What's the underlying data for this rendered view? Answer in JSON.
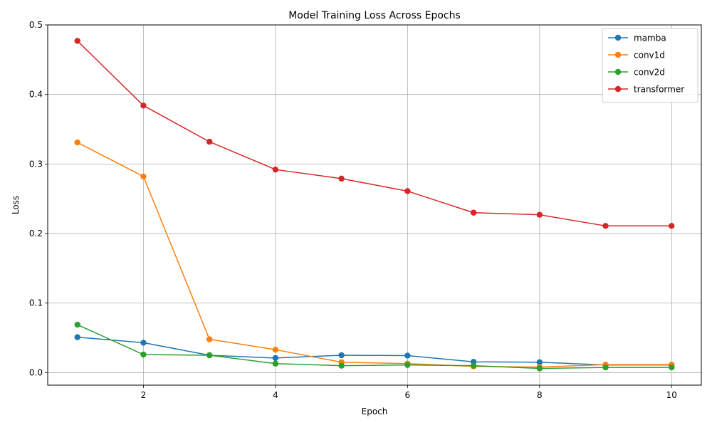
{
  "chart_data": {
    "type": "line",
    "title": "Model Training Loss Across Epochs",
    "xlabel": "Epoch",
    "ylabel": "Loss",
    "x": [
      1,
      2,
      3,
      4,
      5,
      6,
      7,
      8,
      9,
      10
    ],
    "xlim": [
      0.55,
      10.45
    ],
    "ylim": [
      -0.018,
      0.5
    ],
    "xticks": [
      2,
      4,
      6,
      8,
      10
    ],
    "xtick_labels": [
      "2",
      "4",
      "6",
      "8",
      "10"
    ],
    "yticks": [
      0.0,
      0.1,
      0.2,
      0.3,
      0.4,
      0.5
    ],
    "ytick_labels": [
      "0.0",
      "0.1",
      "0.2",
      "0.3",
      "0.4",
      "0.5"
    ],
    "grid": true,
    "legend_position": "top-right",
    "markers": "circle",
    "series": [
      {
        "name": "mamba",
        "color": "#1f77b4",
        "values": [
          0.051,
          0.043,
          0.025,
          0.021,
          0.025,
          0.0245,
          0.0155,
          0.015,
          0.011,
          0.011
        ]
      },
      {
        "name": "conv1d",
        "color": "#ff7f0e",
        "values": [
          0.331,
          0.282,
          0.048,
          0.033,
          0.015,
          0.013,
          0.009,
          0.008,
          0.0115,
          0.0115
        ]
      },
      {
        "name": "conv2d",
        "color": "#2ca02c",
        "values": [
          0.069,
          0.026,
          0.025,
          0.013,
          0.01,
          0.011,
          0.01,
          0.006,
          0.0075,
          0.0075
        ]
      },
      {
        "name": "transformer",
        "color": "#d62728",
        "values": [
          0.477,
          0.384,
          0.332,
          0.292,
          0.279,
          0.261,
          0.23,
          0.227,
          0.211,
          0.211
        ]
      }
    ]
  }
}
